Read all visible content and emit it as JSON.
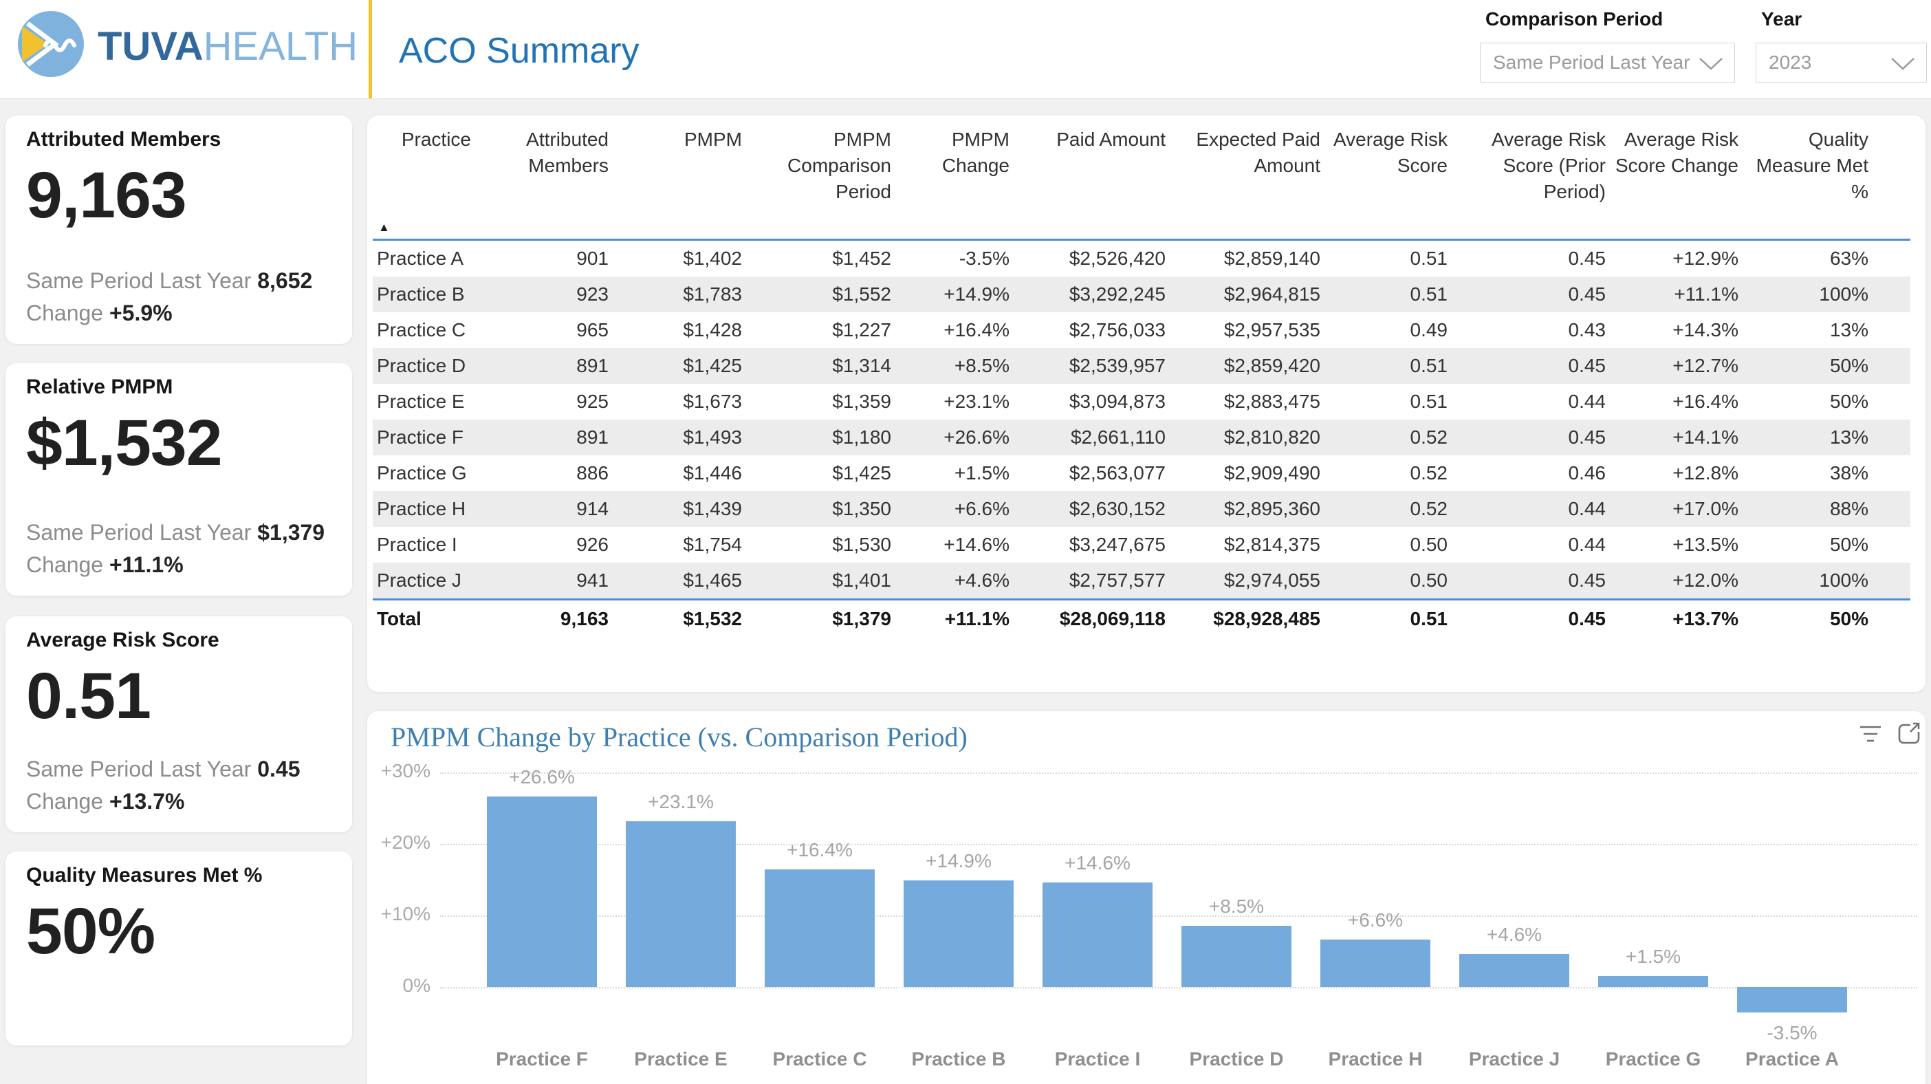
{
  "brand": {
    "bold": "TUVA",
    "light": "HEALTH"
  },
  "page_title": "ACO Summary",
  "filters": {
    "comparison": {
      "label": "Comparison Period",
      "value": "Same Period Last Year"
    },
    "year": {
      "label": "Year",
      "value": "2023"
    }
  },
  "kpis": [
    {
      "title": "Attributed Members",
      "value": "9,163",
      "comparison_label": "Same Period Last Year",
      "comparison_value": "8,652",
      "change_label": "Change",
      "change_value": "+5.9%"
    },
    {
      "title": "Relative PMPM",
      "value": "$1,532",
      "comparison_label": "Same Period Last Year",
      "comparison_value": "$1,379",
      "change_label": "Change",
      "change_value": "+11.1%"
    },
    {
      "title": "Average Risk Score",
      "value": "0.51",
      "comparison_label": "Same Period Last Year",
      "comparison_value": "0.45",
      "change_label": "Change",
      "change_value": "+13.7%"
    },
    {
      "title": "Quality Measures Met %",
      "value": "50%"
    }
  ],
  "table": {
    "columns": [
      "Practice",
      "Attributed Members",
      "PMPM",
      "PMPM Comparison Period",
      "PMPM Change",
      "Paid Amount",
      "Expected Paid Amount",
      "Average Risk Score",
      "Average Risk Score (Prior Period)",
      "Average Risk Score Change",
      "Quality Measure Met %"
    ],
    "rows": [
      [
        "Practice A",
        "901",
        "$1,402",
        "$1,452",
        "-3.5%",
        "$2,526,420",
        "$2,859,140",
        "0.51",
        "0.45",
        "+12.9%",
        "63%"
      ],
      [
        "Practice B",
        "923",
        "$1,783",
        "$1,552",
        "+14.9%",
        "$3,292,245",
        "$2,964,815",
        "0.51",
        "0.45",
        "+11.1%",
        "100%"
      ],
      [
        "Practice C",
        "965",
        "$1,428",
        "$1,227",
        "+16.4%",
        "$2,756,033",
        "$2,957,535",
        "0.49",
        "0.43",
        "+14.3%",
        "13%"
      ],
      [
        "Practice D",
        "891",
        "$1,425",
        "$1,314",
        "+8.5%",
        "$2,539,957",
        "$2,859,420",
        "0.51",
        "0.45",
        "+12.7%",
        "50%"
      ],
      [
        "Practice E",
        "925",
        "$1,673",
        "$1,359",
        "+23.1%",
        "$3,094,873",
        "$2,883,475",
        "0.51",
        "0.44",
        "+16.4%",
        "50%"
      ],
      [
        "Practice F",
        "891",
        "$1,493",
        "$1,180",
        "+26.6%",
        "$2,661,110",
        "$2,810,820",
        "0.52",
        "0.45",
        "+14.1%",
        "13%"
      ],
      [
        "Practice G",
        "886",
        "$1,446",
        "$1,425",
        "+1.5%",
        "$2,563,077",
        "$2,909,490",
        "0.52",
        "0.46",
        "+12.8%",
        "38%"
      ],
      [
        "Practice H",
        "914",
        "$1,439",
        "$1,350",
        "+6.6%",
        "$2,630,152",
        "$2,895,360",
        "0.52",
        "0.44",
        "+17.0%",
        "88%"
      ],
      [
        "Practice I",
        "926",
        "$1,754",
        "$1,530",
        "+14.6%",
        "$3,247,675",
        "$2,814,375",
        "0.50",
        "0.44",
        "+13.5%",
        "50%"
      ],
      [
        "Practice J",
        "941",
        "$1,465",
        "$1,401",
        "+4.6%",
        "$2,757,577",
        "$2,974,055",
        "0.50",
        "0.45",
        "+12.0%",
        "100%"
      ]
    ],
    "total": [
      "Total",
      "9,163",
      "$1,532",
      "$1,379",
      "+11.1%",
      "$28,069,118",
      "$28,928,485",
      "0.51",
      "0.45",
      "+13.7%",
      "50%"
    ]
  },
  "chart_data": {
    "type": "bar",
    "title": "PMPM Change by Practice (vs. Comparison Period)",
    "categories": [
      "Practice F",
      "Practice E",
      "Practice C",
      "Practice B",
      "Practice I",
      "Practice D",
      "Practice H",
      "Practice J",
      "Practice G",
      "Practice A"
    ],
    "values": [
      26.6,
      23.1,
      16.4,
      14.9,
      14.6,
      8.5,
      6.6,
      4.6,
      1.5,
      -3.5
    ],
    "data_labels": [
      "+26.6%",
      "+23.1%",
      "+16.4%",
      "+14.9%",
      "+14.6%",
      "+8.5%",
      "+6.6%",
      "+4.6%",
      "+1.5%",
      "-3.5%"
    ],
    "y_ticks": [
      "+30%",
      "+20%",
      "+10%",
      "0%"
    ],
    "ylim": [
      -5,
      30
    ],
    "grid": "dotted horizontal",
    "legend": "none",
    "xlabel": "",
    "ylabel": ""
  },
  "colors": {
    "accent_blue": "#4A90D9",
    "bar_blue": "#74ABDC",
    "brand_gold": "#F2C12E",
    "brand_dark_blue": "#33689B",
    "brand_light_blue": "#85B5DC",
    "page_title_blue": "#2273B6",
    "chart_title_blue": "#3E7FB0",
    "row_stripe": "#ECECEC"
  }
}
